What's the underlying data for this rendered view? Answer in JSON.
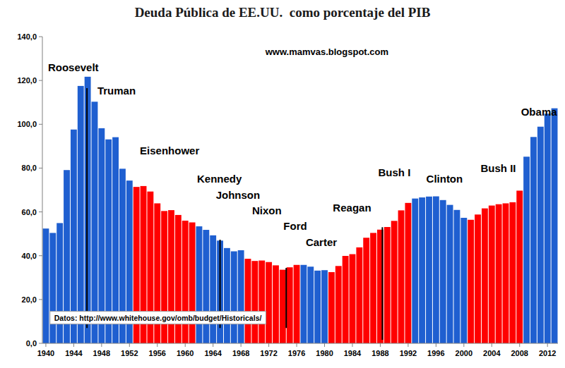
{
  "chart_data": {
    "type": "bar",
    "title": "Deuda Pública de EE.UU.  como porcentaje del PIB",
    "categories": [
      "1940",
      null,
      null,
      null,
      "1944",
      null,
      null,
      null,
      "1948",
      null,
      null,
      null,
      "1952",
      null,
      null,
      null,
      "1956",
      null,
      null,
      null,
      "1960",
      null,
      null,
      null,
      "1964",
      null,
      null,
      null,
      "1968",
      null,
      null,
      null,
      "1972",
      null,
      null,
      null,
      "1976",
      null,
      null,
      null,
      "1980",
      null,
      null,
      null,
      "1984",
      null,
      null,
      null,
      "1988",
      null,
      null,
      null,
      "1992",
      null,
      null,
      null,
      "1996",
      null,
      null,
      null,
      "2000",
      null,
      null,
      null,
      "2004",
      null,
      null,
      null,
      "2008",
      null,
      null,
      null,
      "2012",
      null
    ],
    "values": [
      52.4,
      50.4,
      54.9,
      79.1,
      97.6,
      117.5,
      121.7,
      110.3,
      98.2,
      93.1,
      94.1,
      79.7,
      74.3,
      71.4,
      71.8,
      69.3,
      63.9,
      60.4,
      60.8,
      58.6,
      56.0,
      55.2,
      53.4,
      51.8,
      49.3,
      46.9,
      43.5,
      42.0,
      42.5,
      38.6,
      37.6,
      37.8,
      37.1,
      35.6,
      33.6,
      34.7,
      35.8,
      35.8,
      35.0,
      33.2,
      33.4,
      32.5,
      35.3,
      39.9,
      40.7,
      43.8,
      48.2,
      50.4,
      51.9,
      53.1,
      55.9,
      60.7,
      64.1,
      66.1,
      66.6,
      67.0,
      67.1,
      65.4,
      63.2,
      60.9,
      57.3,
      56.4,
      58.8,
      61.6,
      62.9,
      63.5,
      63.9,
      64.4,
      69.7,
      85.2,
      94.2,
      98.9,
      104.8,
      107.3
    ],
    "colors": [
      "#1f5fd0",
      "#1f5fd0",
      "#1f5fd0",
      "#1f5fd0",
      "#1f5fd0",
      "#1f5fd0",
      "#1f5fd0",
      "#1f5fd0",
      "#1f5fd0",
      "#1f5fd0",
      "#1f5fd0",
      "#1f5fd0",
      "#1f5fd0",
      "#ff0000",
      "#ff0000",
      "#ff0000",
      "#ff0000",
      "#ff0000",
      "#ff0000",
      "#ff0000",
      "#ff0000",
      "#ff0000",
      "#1f5fd0",
      "#1f5fd0",
      "#1f5fd0",
      "#1f5fd0",
      "#1f5fd0",
      "#1f5fd0",
      "#1f5fd0",
      "#ff0000",
      "#ff0000",
      "#ff0000",
      "#ff0000",
      "#ff0000",
      "#ff0000",
      "#ff0000",
      "#ff0000",
      "#1f5fd0",
      "#1f5fd0",
      "#1f5fd0",
      "#1f5fd0",
      "#ff0000",
      "#ff0000",
      "#ff0000",
      "#ff0000",
      "#ff0000",
      "#ff0000",
      "#ff0000",
      "#ff0000",
      "#ff0000",
      "#ff0000",
      "#ff0000",
      "#ff0000",
      "#1f5fd0",
      "#1f5fd0",
      "#1f5fd0",
      "#1f5fd0",
      "#1f5fd0",
      "#1f5fd0",
      "#1f5fd0",
      "#1f5fd0",
      "#ff0000",
      "#ff0000",
      "#ff0000",
      "#ff0000",
      "#ff0000",
      "#ff0000",
      "#ff0000",
      "#ff0000",
      "#1f5fd0",
      "#1f5fd0",
      "#1f5fd0",
      "#1f5fd0",
      "#1f5fd0"
    ],
    "ylim": [
      0,
      140
    ],
    "yticks": [
      {
        "value": 0,
        "label": "0,0"
      },
      {
        "value": 20,
        "label": "20,0"
      },
      {
        "value": 40,
        "label": "40,0"
      },
      {
        "value": 60,
        "label": "60,0"
      },
      {
        "value": 80,
        "label": "80,0"
      },
      {
        "value": 100,
        "label": "100,0"
      },
      {
        "value": 120,
        "label": "120,0"
      },
      {
        "value": 140,
        "label": "140,0"
      }
    ],
    "grid": false,
    "annotations": [
      {
        "text": "Roosevelt",
        "x": 1940.3,
        "y": 125.5
      },
      {
        "text": "Truman",
        "x": 1947.4,
        "y": 115.0
      },
      {
        "text": "Eisenhower",
        "x": 1953.5,
        "y": 87.5
      },
      {
        "text": "Kennedy",
        "x": 1961.7,
        "y": 74.7
      },
      {
        "text": "Johnson",
        "x": 1964.4,
        "y": 67.3
      },
      {
        "text": "Nixon",
        "x": 1969.6,
        "y": 60.2
      },
      {
        "text": "Ford",
        "x": 1974.1,
        "y": 53.1
      },
      {
        "text": "Carter",
        "x": 1977.3,
        "y": 45.7
      },
      {
        "text": "Reagan",
        "x": 1981.2,
        "y": 61.5
      },
      {
        "text": "Bush I",
        "x": 1987.7,
        "y": 77.6
      },
      {
        "text": "Clinton",
        "x": 1994.6,
        "y": 74.7
      },
      {
        "text": "Bush II",
        "x": 2002.4,
        "y": 79.5
      },
      {
        "text": "Obama",
        "x": 2008.2,
        "y": 105.2
      },
      {
        "text": "www.mamvas.blogspot.com",
        "x": 1971.5,
        "y": 132.6
      },
      {
        "text": "Datos: http://www.whitehouse.gov/omb/budget/Historicals/",
        "x": 1941.2,
        "y": 11.3
      }
    ],
    "vlines": [
      {
        "x": 1945.9,
        "y0": 7.0,
        "y1": 116.5
      },
      {
        "x": 1965.0,
        "y0": 7.0,
        "y1": 47.3
      },
      {
        "x": 1974.5,
        "y0": 7.0,
        "y1": 34.4
      },
      {
        "x": 1988.3,
        "y0": 1.6,
        "y1": 53.0
      }
    ]
  }
}
